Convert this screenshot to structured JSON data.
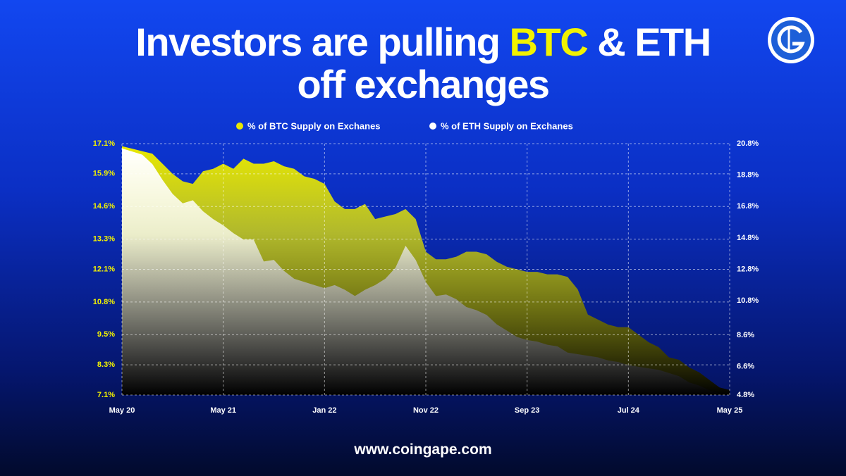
{
  "chart_data": {
    "type": "area",
    "title": [
      "Investors are pulling",
      "BTC",
      "& ETH",
      "off exchanges"
    ],
    "source": "www.coingape.com",
    "categories": [
      "May 20",
      null,
      null,
      null,
      null,
      null,
      null,
      null,
      null,
      null,
      "May 21",
      null,
      null,
      null,
      null,
      null,
      null,
      null,
      null,
      null,
      "Jan 22",
      null,
      null,
      null,
      null,
      null,
      null,
      null,
      null,
      null,
      "Nov 22",
      null,
      null,
      null,
      null,
      null,
      null,
      null,
      null,
      null,
      "Sep 23",
      null,
      null,
      null,
      null,
      null,
      null,
      null,
      null,
      null,
      "Jul 24",
      null,
      null,
      null,
      null,
      null,
      null,
      null,
      null,
      null,
      "May 25"
    ],
    "series": [
      {
        "name": "% of BTC Supply on Exchanes",
        "color": "#e8e800",
        "axis": "y",
        "values": [
          17.0,
          16.9,
          16.8,
          16.7,
          16.3,
          15.9,
          15.6,
          15.5,
          16.0,
          16.1,
          16.3,
          16.1,
          16.5,
          16.3,
          16.3,
          16.4,
          16.2,
          16.1,
          15.8,
          15.7,
          15.5,
          14.8,
          14.5,
          14.5,
          14.7,
          14.1,
          14.2,
          14.3,
          14.5,
          14.1,
          12.8,
          12.5,
          12.5,
          12.6,
          12.8,
          12.8,
          12.7,
          12.4,
          12.2,
          12.1,
          12.0,
          12.0,
          11.9,
          11.9,
          11.8,
          11.3,
          10.3,
          10.1,
          9.9,
          9.8,
          9.8,
          9.5,
          9.2,
          9.0,
          8.6,
          8.5,
          8.2,
          8.0,
          7.7,
          7.4,
          7.3
        ]
      },
      {
        "name": "% of ETH Supply on Exchanes",
        "color": "#ffffff",
        "axis": "y2",
        "values": [
          20.5,
          20.3,
          20.1,
          19.5,
          18.5,
          17.6,
          17.0,
          17.2,
          16.5,
          16.0,
          15.6,
          15.1,
          14.7,
          14.7,
          13.3,
          13.4,
          12.7,
          12.2,
          12.0,
          11.8,
          11.6,
          11.8,
          11.5,
          11.1,
          11.5,
          11.8,
          12.2,
          12.9,
          14.3,
          13.4,
          12.0,
          11.1,
          11.2,
          10.9,
          10.4,
          10.2,
          9.9,
          9.3,
          8.9,
          8.5,
          8.3,
          8.2,
          8.0,
          7.9,
          7.5,
          7.4,
          7.3,
          7.2,
          7.0,
          6.9,
          6.7,
          6.6,
          6.5,
          6.4,
          6.2,
          6.0,
          5.6,
          5.4,
          5.1,
          4.9,
          4.8
        ]
      }
    ],
    "ylim": [
      7.1,
      17.1
    ],
    "yticks": [
      {
        "value": 17.1,
        "label": "17.1%"
      },
      {
        "value": 15.9,
        "label": "15.9%"
      },
      {
        "value": 14.6,
        "label": "14.6%"
      },
      {
        "value": 13.3,
        "label": "13.3%"
      },
      {
        "value": 12.1,
        "label": "12.1%"
      },
      {
        "value": 10.8,
        "label": "10.8%"
      },
      {
        "value": 9.5,
        "label": "9.5%"
      },
      {
        "value": 8.3,
        "label": "8.3%"
      },
      {
        "value": 7.1,
        "label": "7.1%"
      }
    ],
    "y2lim": [
      4.8,
      20.8
    ],
    "y2ticks": [
      {
        "value": 20.8,
        "label": "20.8%"
      },
      {
        "value": 18.8,
        "label": "18.8%"
      },
      {
        "value": 16.8,
        "label": "16.8%"
      },
      {
        "value": 14.8,
        "label": "14.8%"
      },
      {
        "value": 12.8,
        "label": "12.8%"
      },
      {
        "value": 10.8,
        "label": "10.8%"
      },
      {
        "value": 8.6,
        "label": "8.6%"
      },
      {
        "value": 6.6,
        "label": "6.6%"
      },
      {
        "value": 4.8,
        "label": "4.8%"
      }
    ],
    "grid": true,
    "legend": "top"
  }
}
